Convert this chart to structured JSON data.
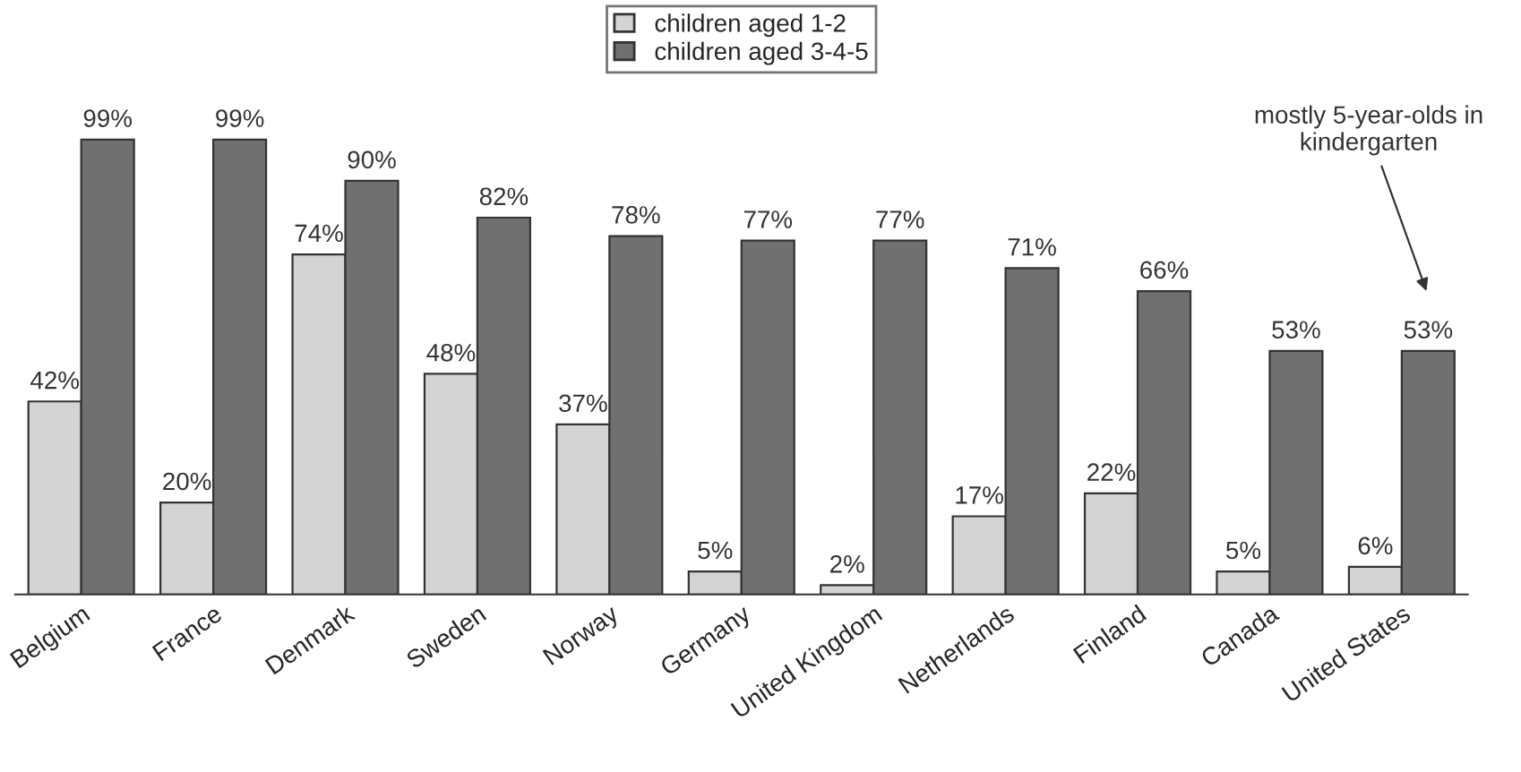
{
  "chart_data": {
    "type": "bar",
    "categories": [
      "Belgium",
      "France",
      "Denmark",
      "Sweden",
      "Norway",
      "Germany",
      "United Kingdom",
      "Netherlands",
      "Finland",
      "Canada",
      "United States"
    ],
    "series": [
      {
        "name": "children aged 1-2",
        "color": "#d4d4d4",
        "values": [
          42,
          20,
          74,
          48,
          37,
          5,
          2,
          17,
          22,
          5,
          6
        ],
        "value_labels": [
          "42%",
          "20%",
          "74%",
          "48%",
          "37%",
          "5%",
          "2%",
          "17%",
          "22%",
          "5%",
          "6%"
        ]
      },
      {
        "name": "children aged 3-4-5",
        "color": "#707070",
        "values": [
          99,
          99,
          90,
          82,
          78,
          77,
          77,
          71,
          66,
          53,
          53
        ],
        "value_labels": [
          "99%",
          "99%",
          "90%",
          "82%",
          "78%",
          "77%",
          "77%",
          "71%",
          "66%",
          "53%",
          "53%"
        ]
      }
    ],
    "legend": "top",
    "annotations": [
      "mostly 5-year-olds in\nkindergarten"
    ]
  }
}
